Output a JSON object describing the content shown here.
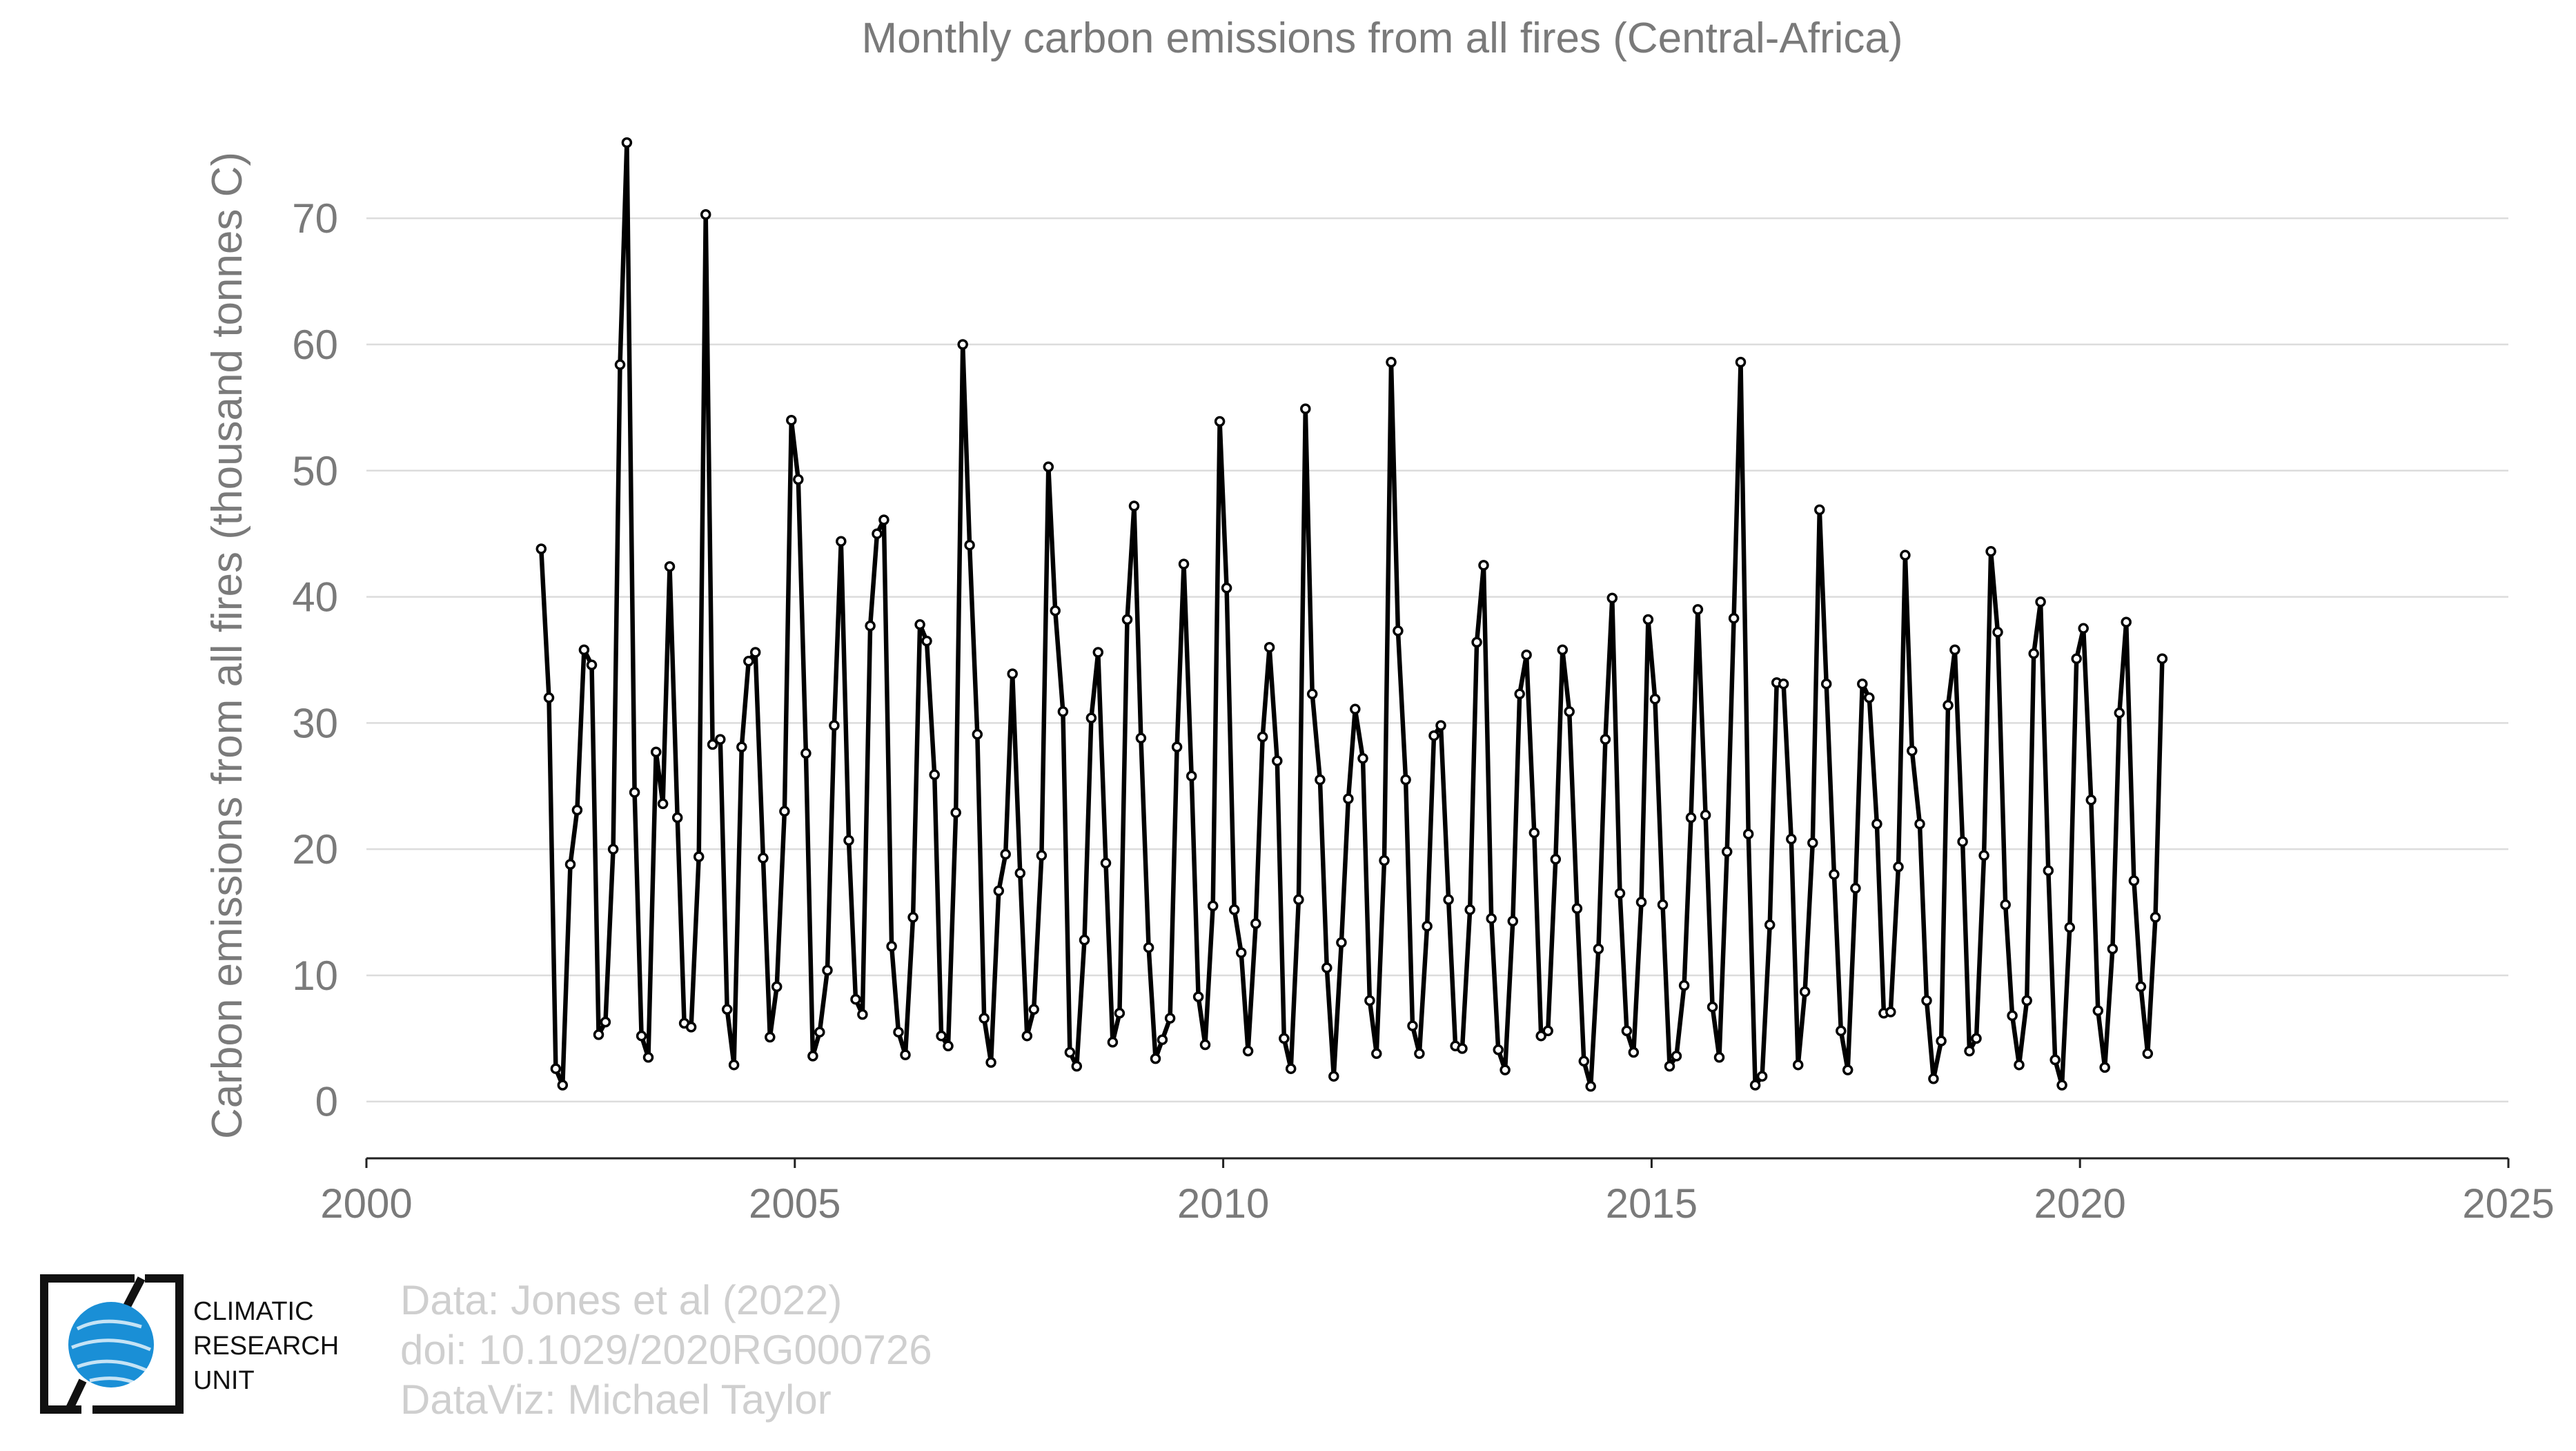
{
  "chart_data": {
    "type": "line",
    "title": "Monthly carbon emissions from all fires (Central-Africa)",
    "xlabel": "",
    "ylabel": "Carbon emissions from all fires (thousand tonnes C)",
    "xlim": [
      2000,
      2025
    ],
    "ylim": [
      -4.5,
      78
    ],
    "x_ticks": [
      "2000",
      "2005",
      "2010",
      "2015",
      "2020",
      "2025"
    ],
    "y_ticks": [
      "0",
      "10",
      "20",
      "30",
      "40",
      "50",
      "60",
      "70"
    ],
    "grid": true,
    "legend": "none",
    "line_color": "#000000",
    "marker_fill": "#ffffff",
    "series": [
      {
        "x": [
          2002.04,
          2002.13,
          2002.21,
          2002.29,
          2002.38,
          2002.46,
          2002.54,
          2002.63,
          2002.71,
          2002.79,
          2002.88,
          2002.96,
          2003.04,
          2003.13,
          2003.21,
          2003.29,
          2003.38,
          2003.46,
          2003.54,
          2003.63,
          2003.71,
          2003.79,
          2003.88,
          2003.96,
          2004.04,
          2004.13,
          2004.21,
          2004.29,
          2004.38,
          2004.46,
          2004.54,
          2004.63,
          2004.71,
          2004.79,
          2004.88,
          2004.96,
          2005.04,
          2005.13,
          2005.21,
          2005.29,
          2005.38,
          2005.46,
          2005.54,
          2005.63,
          2005.71,
          2005.79,
          2005.88,
          2005.96,
          2006.04,
          2006.13,
          2006.21,
          2006.29,
          2006.38,
          2006.46,
          2006.54,
          2006.63,
          2006.71,
          2006.79,
          2006.88,
          2006.96,
          2007.04,
          2007.13,
          2007.21,
          2007.29,
          2007.38,
          2007.46,
          2007.54,
          2007.63,
          2007.71,
          2007.79,
          2007.88,
          2007.96,
          2008.04,
          2008.13,
          2008.21,
          2008.29,
          2008.38,
          2008.46,
          2008.54,
          2008.63,
          2008.71,
          2008.79,
          2008.88,
          2008.96,
          2009.04,
          2009.13,
          2009.21,
          2009.29,
          2009.38,
          2009.46,
          2009.54,
          2009.63,
          2009.71,
          2009.79,
          2009.88,
          2009.96,
          2010.04,
          2010.13,
          2010.21,
          2010.29,
          2010.38,
          2010.46,
          2010.54,
          2010.63,
          2010.71,
          2010.79,
          2010.88,
          2010.96,
          2011.04,
          2011.13,
          2011.21,
          2011.29,
          2011.38,
          2011.46,
          2011.54,
          2011.63,
          2011.71,
          2011.79,
          2011.88,
          2011.96,
          2012.04,
          2012.13,
          2012.21,
          2012.29,
          2012.38,
          2012.46,
          2012.54,
          2012.63,
          2012.71,
          2012.79,
          2012.88,
          2012.96,
          2013.04,
          2013.13,
          2013.21,
          2013.29,
          2013.38,
          2013.46,
          2013.54,
          2013.63,
          2013.71,
          2013.79,
          2013.88,
          2013.96,
          2014.04,
          2014.13,
          2014.21,
          2014.29,
          2014.38,
          2014.46,
          2014.54,
          2014.63,
          2014.71,
          2014.79,
          2014.88,
          2014.96,
          2015.04,
          2015.13,
          2015.21,
          2015.29,
          2015.38,
          2015.46,
          2015.54,
          2015.63,
          2015.71,
          2015.79,
          2015.88,
          2015.96,
          2016.04,
          2016.13,
          2016.21,
          2016.29,
          2016.38,
          2016.46,
          2016.54,
          2016.63,
          2016.71,
          2016.79,
          2016.88,
          2016.96,
          2017.04,
          2017.13,
          2017.21,
          2017.29,
          2017.38,
          2017.46,
          2017.54,
          2017.63,
          2017.71,
          2017.79,
          2017.88,
          2017.96,
          2018.04,
          2018.13,
          2018.21,
          2018.29,
          2018.38,
          2018.46,
          2018.54,
          2018.63,
          2018.71,
          2018.79,
          2018.88,
          2018.96,
          2019.04,
          2019.13,
          2019.21,
          2019.29,
          2019.38,
          2019.46,
          2019.54,
          2019.63,
          2019.71,
          2019.79,
          2019.88,
          2019.96,
          2020.04,
          2020.13,
          2020.21,
          2020.29,
          2020.38,
          2020.46,
          2020.54,
          2020.63,
          2020.71,
          2020.79,
          2020.88,
          2020.96
        ],
        "y": [
          43.8,
          32.0,
          2.6,
          1.3,
          18.8,
          23.1,
          35.8,
          34.6,
          5.3,
          6.3,
          20.0,
          58.4,
          76.0,
          24.5,
          5.2,
          3.5,
          27.7,
          23.6,
          42.4,
          22.5,
          6.2,
          5.9,
          19.4,
          70.3,
          28.3,
          28.7,
          7.3,
          2.9,
          28.1,
          34.9,
          35.6,
          19.3,
          5.1,
          9.1,
          23.0,
          54.0,
          49.3,
          27.6,
          3.6,
          5.5,
          10.4,
          29.8,
          44.4,
          20.7,
          8.1,
          6.9,
          37.7,
          45.0,
          46.1,
          12.3,
          5.5,
          3.7,
          14.6,
          37.8,
          36.5,
          25.9,
          5.2,
          4.4,
          22.9,
          60.0,
          44.1,
          29.1,
          6.6,
          3.1,
          16.7,
          19.6,
          33.9,
          18.1,
          5.2,
          7.3,
          19.5,
          50.3,
          38.9,
          30.9,
          3.9,
          2.8,
          12.8,
          30.4,
          35.6,
          18.9,
          4.7,
          7.0,
          38.2,
          47.2,
          28.8,
          12.2,
          3.4,
          4.9,
          6.6,
          28.1,
          42.6,
          25.8,
          8.3,
          4.5,
          15.5,
          53.9,
          40.7,
          15.2,
          11.8,
          4.0,
          14.1,
          28.9,
          36.0,
          27.0,
          5.0,
          2.6,
          16.0,
          54.9,
          32.3,
          25.5,
          10.6,
          2.0,
          12.6,
          24.0,
          31.1,
          27.2,
          8.0,
          3.8,
          19.1,
          58.6,
          37.3,
          25.5,
          6.0,
          3.8,
          13.9,
          29.0,
          29.8,
          16.0,
          4.4,
          4.2,
          15.2,
          36.4,
          42.5,
          14.5,
          4.1,
          2.5,
          14.3,
          32.3,
          35.4,
          21.3,
          5.2,
          5.6,
          19.2,
          35.8,
          30.9,
          15.3,
          3.2,
          1.2,
          12.1,
          28.7,
          39.9,
          16.5,
          5.6,
          3.9,
          15.8,
          38.2,
          31.9,
          15.6,
          2.8,
          3.6,
          9.2,
          22.5,
          39.0,
          22.7,
          7.5,
          3.5,
          19.8,
          38.3,
          58.6,
          21.2,
          1.3,
          2.0,
          14.0,
          33.2,
          33.1,
          20.8,
          2.9,
          8.7,
          20.5,
          46.9,
          33.1,
          18.0,
          5.6,
          2.5,
          16.9,
          33.1,
          32.0,
          22.0,
          7.0,
          7.1,
          18.6,
          43.3,
          27.8,
          22.0,
          8.0,
          1.8,
          4.8,
          31.4,
          35.8,
          20.6,
          4.0,
          5.0,
          19.5,
          43.6,
          37.2,
          15.6,
          6.8,
          2.9,
          8.0,
          35.5,
          39.6,
          18.3,
          3.3,
          1.3,
          13.8,
          35.1,
          37.5,
          23.9,
          7.2,
          2.7,
          12.1,
          30.8,
          38.0,
          17.5,
          9.1,
          3.8,
          14.6,
          35.1
        ]
      }
    ]
  },
  "credits": {
    "line1": "Data: Jones et al (2022)",
    "line2": "doi: 10.1029/2020RG000726",
    "line3": "DataViz: Michael Taylor"
  },
  "logo": {
    "line1": "CLIMATIC",
    "line2": "RESEARCH",
    "line3": "UNIT",
    "globe_color": "#1a8fd6"
  }
}
